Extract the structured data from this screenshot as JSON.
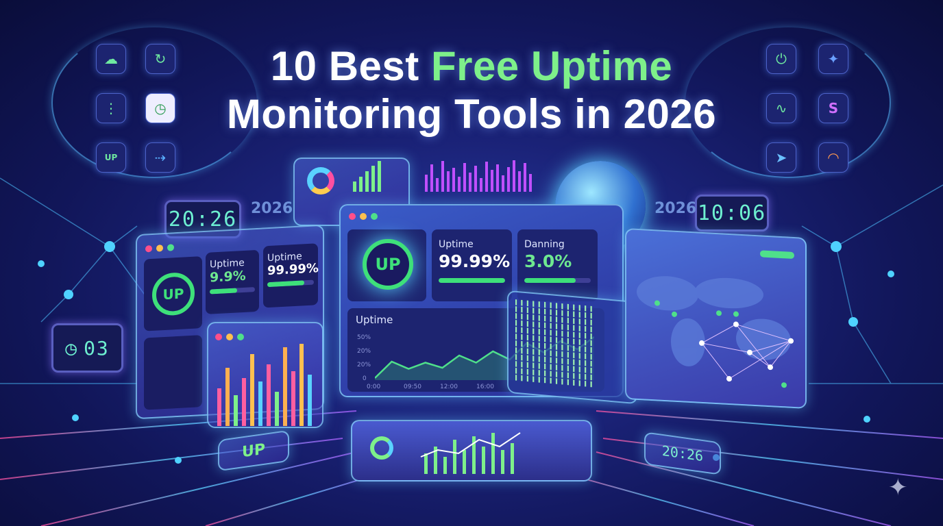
{
  "title": {
    "line1_prefix": "10 Best ",
    "line1_highlight": "Free Uptime",
    "line2": "Monitoring Tools in 2026"
  },
  "colors": {
    "background": "#111659",
    "accent_green": "#7ef08a",
    "glow_cyan": "#5ad2ff",
    "accent_pink": "#ff4fa0"
  },
  "left_icons": [
    "cloud-heartbeat-icon",
    "check-refresh-icon",
    "network-node-icon",
    "uptime-clock-icon",
    "up-badge-icon",
    "arrow-forward-icon"
  ],
  "left_icon_glyphs": [
    "☁",
    "↻",
    "⋮",
    "◷",
    "UP",
    "⇢"
  ],
  "right_icons": [
    "power-icon",
    "bird-logo-icon",
    "pulse-icon",
    "s-logo-icon",
    "bird-wing-icon",
    "gauge-icon"
  ],
  "right_icon_glyphs": [
    "⏻",
    "✦",
    "∿",
    "S",
    "➤",
    "◠"
  ],
  "clocks": {
    "left": "20:26",
    "left_year": "2026",
    "right": "10:06",
    "right_year": "2026",
    "small": "03",
    "tile_right": "20:26"
  },
  "tile_left": "UP",
  "left_dashboard": {
    "status": "UP",
    "card1_label": "Uptime",
    "card1_value": "9.9%",
    "card1_progress": 0.6,
    "card2_label": "Uptime",
    "card2_value": "99.99%",
    "card2_progress": 0.8
  },
  "main_dashboard": {
    "status": "UP",
    "card1_label": "Uptime",
    "card1_value": "99.99%",
    "card1_progress": 1.0,
    "card2_label": "Danning",
    "card2_value": "3.0%",
    "card2_progress": 0.77,
    "chart_title": "Uptime",
    "y_ticks": [
      "50%",
      "20%",
      "20%",
      "0"
    ],
    "x_ticks": [
      "0:00",
      "09:50",
      "12:00",
      "16:00"
    ],
    "uptime_series": [
      2,
      18,
      11,
      17,
      12,
      24,
      17,
      28,
      20,
      36,
      27,
      38,
      30,
      42
    ]
  }
}
